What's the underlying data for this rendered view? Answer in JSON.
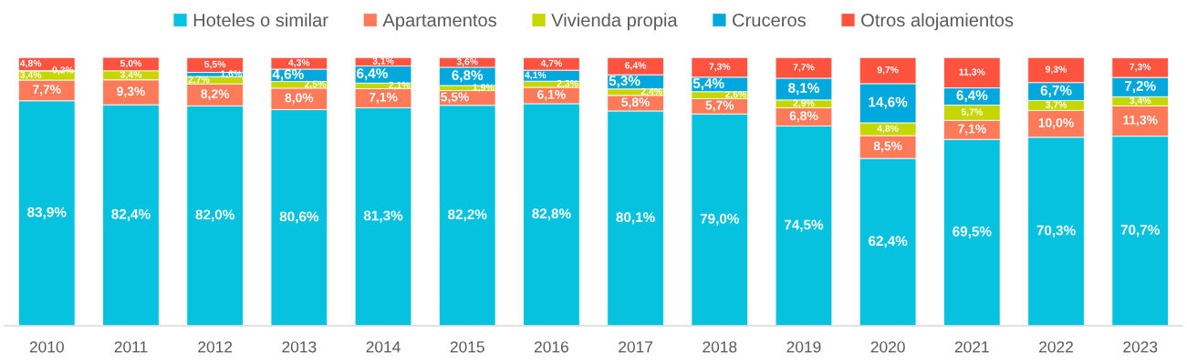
{
  "chart_data": {
    "type": "bar",
    "stacked": true,
    "legend": "top",
    "tick_labels": "x",
    "categories": [
      "2010",
      "2011",
      "2012",
      "2013",
      "2014",
      "2015",
      "2016",
      "2017",
      "2018",
      "2019",
      "2020",
      "2021",
      "2022",
      "2023"
    ],
    "series": [
      {
        "name": "Hoteles o similar",
        "color": "#07c2de",
        "values": [
          83.9,
          82.4,
          82.0,
          80.6,
          81.3,
          82.2,
          82.8,
          80.1,
          79.0,
          74.5,
          62.4,
          69.5,
          70.3,
          70.7
        ],
        "value_labels": [
          "83,9%",
          "82,4%",
          "82,0%",
          "80,6%",
          "81,3%",
          "82,2%",
          "82,8%",
          "80,1%",
          "79,0%",
          "74,5%",
          "62,4%",
          "69,5%",
          "70,3%",
          "70,7%"
        ]
      },
      {
        "name": "Apartamentos",
        "color": "#ff7a59",
        "values": [
          7.7,
          9.3,
          8.2,
          8.0,
          7.1,
          5.5,
          6.1,
          5.8,
          5.7,
          6.8,
          8.5,
          7.1,
          10.0,
          11.3
        ],
        "value_labels": [
          "7,7%",
          "9,3%",
          "8,2%",
          "8,0%",
          "7,1%",
          "5,5%",
          "6,1%",
          "5,8%",
          "5,7%",
          "6,8%",
          "8,5%",
          "7,1%",
          "10,0%",
          "11,3%"
        ]
      },
      {
        "name": "Vivienda propia",
        "color": "#c5d600",
        "values": [
          3.4,
          3.4,
          2.7,
          2.5,
          2.1,
          1.9,
          2.3,
          2.4,
          2.6,
          2.9,
          4.8,
          5.7,
          3.7,
          3.4
        ],
        "value_labels": [
          "3,4%",
          "3,4%",
          "2,7%",
          "2,5%",
          "2,1%",
          "1,9%",
          "2,3%",
          "2,4%",
          "2,6%",
          "2,9%",
          "4,8%",
          "5,7%",
          "3,7%",
          "3,4%"
        ]
      },
      {
        "name": "Cruceros",
        "color": "#00a8de",
        "values": [
          0.2,
          null,
          1.6,
          4.6,
          6.4,
          6.8,
          4.1,
          5.3,
          5.4,
          8.1,
          14.6,
          6.4,
          6.7,
          7.2
        ],
        "value_labels": [
          "0,2%",
          null,
          "1,6%",
          "4,6%",
          "6,4%",
          "6,8%",
          "4,1%",
          "5,3%",
          "5,4%",
          "8,1%",
          "14,6%",
          "6,4%",
          "6,7%",
          "7,2%"
        ]
      },
      {
        "name": "Otros alojamientos",
        "color": "#ff5340",
        "values": [
          4.8,
          5.0,
          5.5,
          4.3,
          3.1,
          3.6,
          4.7,
          6.4,
          7.3,
          7.7,
          9.7,
          11.3,
          9.3,
          7.3
        ],
        "value_labels": [
          "4,8%",
          "5,0%",
          "5,5%",
          "4,3%",
          "3,1%",
          "3,6%",
          "4,7%",
          "6,4%",
          "7,3%",
          "7,7%",
          "9,7%",
          "11,3%",
          "9,3%",
          "7,3%"
        ]
      }
    ]
  }
}
